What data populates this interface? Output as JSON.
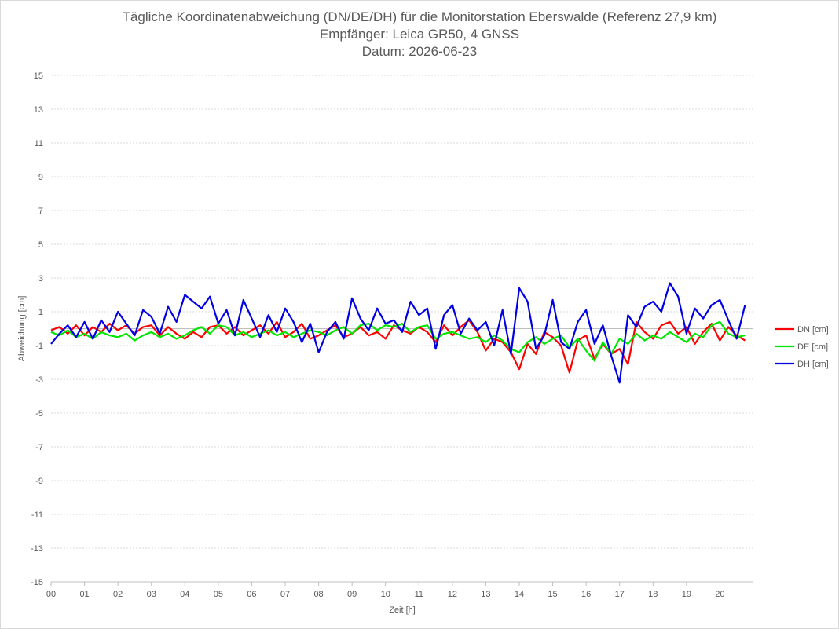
{
  "chart_data": {
    "type": "line",
    "title": "Tägliche Koordinatenabweichung (DN/DE/DH) für die Monitorstation Eberswalde (Referenz 27,9 km)",
    "subtitle": "Empfänger: Leica GR50, 4 GNSS",
    "subtitle2": "Datum: 2026-06-23",
    "xlabel": "Zeit [h]",
    "ylabel": "Abweichung [cm]",
    "xlim": [
      0,
      21
    ],
    "ylim": [
      -15,
      15
    ],
    "x_tick_labels": [
      "00",
      "01",
      "02",
      "03",
      "04",
      "05",
      "06",
      "07",
      "08",
      "09",
      "10",
      "11",
      "12",
      "13",
      "14",
      "15",
      "16",
      "17",
      "18",
      "19",
      "20"
    ],
    "y_ticks": [
      15,
      13,
      11,
      9,
      7,
      5,
      3,
      1,
      -1,
      -3,
      -5,
      -7,
      -9,
      -11,
      -13,
      -15
    ],
    "y_tick_labels": [
      "15",
      "13",
      "11",
      "9",
      "7",
      "5",
      "3",
      "1",
      "-1",
      "-3",
      "-5",
      "-7",
      "-9",
      "-11",
      "-13",
      "-15"
    ],
    "grid": true,
    "legend_position": "right",
    "series": [
      {
        "name": "DN [cm]",
        "color": "#ff0000",
        "x": [
          0,
          0.25,
          0.5,
          0.75,
          1,
          1.25,
          1.5,
          1.75,
          2,
          2.25,
          2.5,
          2.75,
          3,
          3.25,
          3.5,
          3.75,
          4,
          4.25,
          4.5,
          4.75,
          5,
          5.25,
          5.5,
          5.75,
          6,
          6.25,
          6.5,
          6.75,
          7,
          7.25,
          7.5,
          7.75,
          8,
          8.25,
          8.5,
          8.75,
          9,
          9.25,
          9.5,
          9.75,
          10,
          10.25,
          10.5,
          10.75,
          11,
          11.25,
          11.5,
          11.75,
          12,
          12.25,
          12.5,
          12.75,
          13,
          13.25,
          13.5,
          13.75,
          14,
          14.25,
          14.5,
          14.75,
          15,
          15.25,
          15.5,
          15.75,
          16,
          16.25,
          16.5,
          16.75,
          17,
          17.25,
          17.5,
          17.75,
          18,
          18.25,
          18.5,
          18.75,
          19,
          19.25,
          19.5,
          19.75,
          20,
          20.25,
          20.5,
          20.75
        ],
        "values": [
          -0.1,
          0.1,
          -0.3,
          0.2,
          -0.4,
          0.1,
          -0.2,
          0.3,
          -0.1,
          0.2,
          -0.3,
          0.1,
          0.2,
          -0.4,
          0.1,
          -0.3,
          -0.6,
          -0.2,
          -0.5,
          0.1,
          0.2,
          -0.3,
          0.1,
          -0.4,
          -0.1,
          0.2,
          -0.3,
          0.4,
          -0.5,
          -0.2,
          0.3,
          -0.6,
          -0.4,
          -0.1,
          0.2,
          -0.5,
          -0.3,
          0.1,
          -0.4,
          -0.2,
          -0.6,
          0.2,
          -0.1,
          -0.3,
          0.1,
          -0.2,
          -0.8,
          0.2,
          -0.4,
          0.1,
          0.5,
          -0.2,
          -1.3,
          -0.6,
          -0.8,
          -1.4,
          -2.4,
          -0.9,
          -1.5,
          -0.2,
          -0.5,
          -1.0,
          -2.6,
          -0.7,
          -0.4,
          -1.8,
          -0.9,
          -1.5,
          -1.2,
          -2.1,
          0.4,
          -0.2,
          -0.6,
          0.2,
          0.4,
          -0.3,
          0.1,
          -0.9,
          -0.2,
          0.3,
          -0.7,
          0.1,
          -0.4,
          -0.7
        ]
      },
      {
        "name": "DE [cm]",
        "color": "#00e600",
        "x": [
          0,
          0.25,
          0.5,
          0.75,
          1,
          1.25,
          1.5,
          1.75,
          2,
          2.25,
          2.5,
          2.75,
          3,
          3.25,
          3.5,
          3.75,
          4,
          4.25,
          4.5,
          4.75,
          5,
          5.25,
          5.5,
          5.75,
          6,
          6.25,
          6.5,
          6.75,
          7,
          7.25,
          7.5,
          7.75,
          8,
          8.25,
          8.5,
          8.75,
          9,
          9.25,
          9.5,
          9.75,
          10,
          10.25,
          10.5,
          10.75,
          11,
          11.25,
          11.5,
          11.75,
          12,
          12.25,
          12.5,
          12.75,
          13,
          13.25,
          13.5,
          13.75,
          14,
          14.25,
          14.5,
          14.75,
          15,
          15.25,
          15.5,
          15.75,
          16,
          16.25,
          16.5,
          16.75,
          17,
          17.25,
          17.5,
          17.75,
          18,
          18.25,
          18.5,
          18.75,
          19,
          19.25,
          19.5,
          19.75,
          20,
          20.25,
          20.5,
          20.75
        ],
        "values": [
          -0.2,
          -0.4,
          -0.1,
          -0.5,
          -0.3,
          -0.6,
          -0.2,
          -0.4,
          -0.5,
          -0.3,
          -0.7,
          -0.4,
          -0.2,
          -0.5,
          -0.3,
          -0.6,
          -0.4,
          -0.1,
          0.1,
          -0.3,
          0.2,
          0.1,
          -0.4,
          -0.2,
          -0.5,
          -0.3,
          -0.1,
          -0.4,
          -0.2,
          -0.5,
          -0.3,
          -0.1,
          -0.2,
          -0.4,
          -0.1,
          0.1,
          -0.3,
          0.2,
          0.3,
          -0.1,
          0.2,
          0.1,
          0.3,
          -0.2,
          0.1,
          0.2,
          -0.6,
          -0.3,
          -0.2,
          -0.4,
          -0.6,
          -0.5,
          -0.8,
          -0.4,
          -0.7,
          -1.2,
          -1.4,
          -0.8,
          -0.5,
          -0.9,
          -0.6,
          -0.4,
          -1.1,
          -0.6,
          -1.3,
          -1.9,
          -0.8,
          -1.5,
          -0.6,
          -0.9,
          -0.3,
          -0.7,
          -0.4,
          -0.6,
          -0.2,
          -0.5,
          -0.8,
          -0.3,
          -0.5,
          0.2,
          0.4,
          -0.3,
          -0.5,
          -0.4
        ]
      },
      {
        "name": "DH [cm]",
        "color": "#0000e6",
        "x": [
          0,
          0.25,
          0.5,
          0.75,
          1,
          1.25,
          1.5,
          1.75,
          2,
          2.25,
          2.5,
          2.75,
          3,
          3.25,
          3.5,
          3.75,
          4,
          4.25,
          4.5,
          4.75,
          5,
          5.25,
          5.5,
          5.75,
          6,
          6.25,
          6.5,
          6.75,
          7,
          7.25,
          7.5,
          7.75,
          8,
          8.25,
          8.5,
          8.75,
          9,
          9.25,
          9.5,
          9.75,
          10,
          10.25,
          10.5,
          10.75,
          11,
          11.25,
          11.5,
          11.75,
          12,
          12.25,
          12.5,
          12.75,
          13,
          13.25,
          13.5,
          13.75,
          14,
          14.25,
          14.5,
          14.75,
          15,
          15.25,
          15.5,
          15.75,
          16,
          16.25,
          16.5,
          16.75,
          17,
          17.25,
          17.5,
          17.75,
          18,
          18.25,
          18.5,
          18.75,
          19,
          19.25,
          19.5,
          19.75,
          20,
          20.25,
          20.5,
          20.75
        ],
        "values": [
          -0.9,
          -0.3,
          0.2,
          -0.5,
          0.4,
          -0.6,
          0.5,
          -0.2,
          1.0,
          0.3,
          -0.4,
          1.1,
          0.7,
          -0.3,
          1.3,
          0.4,
          2.0,
          1.6,
          1.2,
          1.9,
          0.3,
          1.1,
          -0.4,
          1.7,
          0.6,
          -0.5,
          0.8,
          -0.2,
          1.2,
          0.4,
          -0.8,
          0.3,
          -1.4,
          -0.2,
          0.4,
          -0.6,
          1.8,
          0.6,
          -0.1,
          1.2,
          0.3,
          0.5,
          -0.2,
          1.6,
          0.8,
          1.2,
          -1.2,
          0.8,
          1.4,
          -0.3,
          0.6,
          -0.1,
          0.4,
          -1.0,
          1.1,
          -1.5,
          2.4,
          1.6,
          -1.2,
          -0.4,
          1.7,
          -0.8,
          -1.2,
          0.4,
          1.1,
          -0.9,
          0.2,
          -1.6,
          -3.2,
          0.8,
          0.1,
          1.3,
          1.6,
          1.0,
          2.7,
          1.9,
          -0.3,
          1.2,
          0.6,
          1.4,
          1.7,
          0.5,
          -0.6,
          1.4
        ]
      }
    ]
  }
}
